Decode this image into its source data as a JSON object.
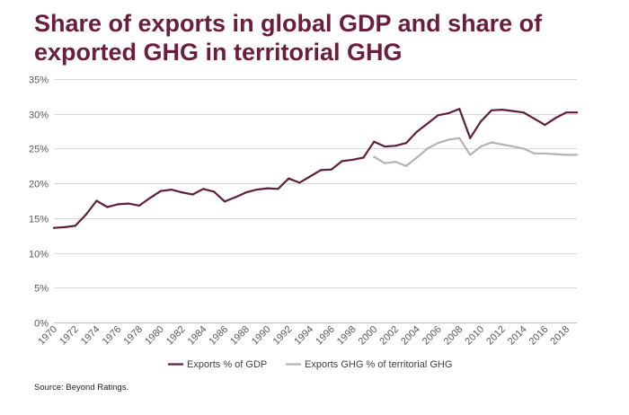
{
  "title_lines": [
    "Share of exports in global GDP and share of",
    "exported GHG in territorial GHG"
  ],
  "source": "Source: Beyond Ratings.",
  "colors": {
    "title": "#6b1e3c",
    "gdp": "#5e1f3b",
    "ghg": "#b3b3b3",
    "grid": "#d9d9d9"
  },
  "chart_data": {
    "type": "line",
    "title": "Share of exports in global GDP and share of exported GHG in territorial GHG",
    "xlabel": "",
    "ylabel": "",
    "ylim": [
      0,
      35
    ],
    "xlim": [
      1970,
      2019
    ],
    "yticks": [
      "0%",
      "5%",
      "10%",
      "15%",
      "20%",
      "25%",
      "30%",
      "35%"
    ],
    "ytick_values": [
      0,
      5,
      10,
      15,
      20,
      25,
      30,
      35
    ],
    "xticks": [
      "1970",
      "1972",
      "1974",
      "1976",
      "1978",
      "1980",
      "1982",
      "1984",
      "1986",
      "1988",
      "1990",
      "1992",
      "1994",
      "1996",
      "1998",
      "2000",
      "2002",
      "2004",
      "2006",
      "2008",
      "2010",
      "2012",
      "2014",
      "2016",
      "2018"
    ],
    "legend_position": "bottom",
    "series": [
      {
        "name": "Exports % of GDP",
        "color": "#5e1f3b",
        "x": [
          1970,
          1971,
          1972,
          1973,
          1974,
          1975,
          1976,
          1977,
          1978,
          1979,
          1980,
          1981,
          1982,
          1983,
          1984,
          1985,
          1986,
          1987,
          1988,
          1989,
          1990,
          1991,
          1992,
          1993,
          1994,
          1995,
          1996,
          1997,
          1998,
          1999,
          2000,
          2001,
          2002,
          2003,
          2004,
          2005,
          2006,
          2007,
          2008,
          2009,
          2010,
          2011,
          2012,
          2013,
          2014,
          2015,
          2016,
          2017,
          2018,
          2019
        ],
        "values": [
          13.6,
          13.7,
          13.9,
          15.5,
          17.5,
          16.6,
          17.0,
          17.1,
          16.8,
          17.9,
          18.9,
          19.1,
          18.7,
          18.4,
          19.2,
          18.8,
          17.4,
          18.0,
          18.7,
          19.1,
          19.3,
          19.2,
          20.7,
          20.1,
          21.0,
          21.9,
          22.0,
          23.2,
          23.4,
          23.7,
          26.0,
          25.3,
          25.4,
          25.8,
          27.4,
          28.6,
          29.8,
          30.1,
          30.7,
          26.5,
          28.9,
          30.5,
          30.6,
          30.4,
          30.2,
          29.3,
          28.4,
          29.4,
          30.2,
          30.2
        ]
      },
      {
        "name": "Exports GHG % of territorial GHG",
        "color": "#b3b3b3",
        "x": [
          2000,
          2001,
          2002,
          2003,
          2004,
          2005,
          2006,
          2007,
          2008,
          2009,
          2010,
          2011,
          2012,
          2013,
          2014,
          2015,
          2016,
          2017,
          2018,
          2019
        ],
        "values": [
          23.8,
          22.9,
          23.1,
          22.5,
          23.7,
          25.0,
          25.8,
          26.3,
          26.5,
          24.1,
          25.3,
          25.9,
          25.6,
          25.3,
          25.0,
          24.3,
          24.3,
          24.2,
          24.1,
          24.1
        ]
      }
    ]
  }
}
